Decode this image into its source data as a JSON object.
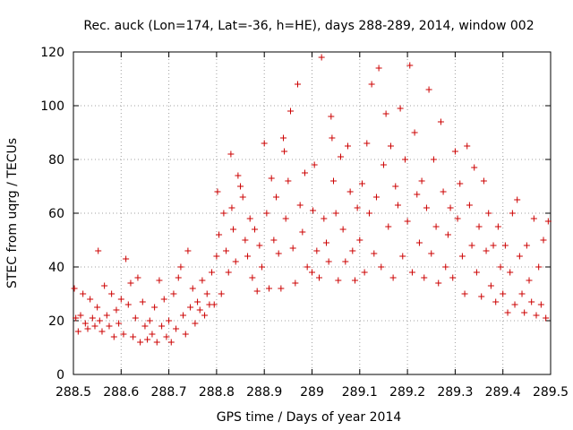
{
  "chart_data": {
    "type": "scatter",
    "title": "Rec. auck (Lon=174, Lat=-36, h=HE), days 288-289, 2014, window 002",
    "xlabel": "GPS time / Days of year 2014",
    "ylabel": "STEC from uqrg / TECUs",
    "xlim": [
      288.5,
      289.5
    ],
    "ylim": [
      0,
      120
    ],
    "xticks": [
      "288.5",
      "288.6",
      "288.7",
      "288.8",
      "288.9",
      "289",
      "289.1",
      "289.2",
      "289.3",
      "289.4",
      "289.5"
    ],
    "yticks": [
      "0",
      "20",
      "40",
      "60",
      "80",
      "100",
      "120"
    ],
    "grid": true,
    "marker": "+",
    "color": "#cc0000",
    "points": [
      [
        288.502,
        32
      ],
      [
        288.505,
        21
      ],
      [
        288.51,
        16
      ],
      [
        288.515,
        22
      ],
      [
        288.52,
        30
      ],
      [
        288.525,
        19
      ],
      [
        288.53,
        17
      ],
      [
        288.535,
        28
      ],
      [
        288.54,
        21
      ],
      [
        288.545,
        18
      ],
      [
        288.55,
        25
      ],
      [
        288.552,
        46
      ],
      [
        288.555,
        20
      ],
      [
        288.56,
        16
      ],
      [
        288.565,
        33
      ],
      [
        288.57,
        22
      ],
      [
        288.575,
        18
      ],
      [
        288.58,
        30
      ],
      [
        288.585,
        14
      ],
      [
        288.59,
        24
      ],
      [
        288.595,
        19
      ],
      [
        288.6,
        28
      ],
      [
        288.605,
        15
      ],
      [
        288.61,
        43
      ],
      [
        288.615,
        26
      ],
      [
        288.62,
        34
      ],
      [
        288.625,
        14
      ],
      [
        288.63,
        21
      ],
      [
        288.635,
        36
      ],
      [
        288.64,
        12
      ],
      [
        288.645,
        27
      ],
      [
        288.65,
        18
      ],
      [
        288.655,
        13
      ],
      [
        288.66,
        20
      ],
      [
        288.665,
        15
      ],
      [
        288.67,
        25
      ],
      [
        288.675,
        12
      ],
      [
        288.68,
        35
      ],
      [
        288.685,
        18
      ],
      [
        288.69,
        28
      ],
      [
        288.695,
        14
      ],
      [
        288.7,
        20
      ],
      [
        288.705,
        12
      ],
      [
        288.71,
        30
      ],
      [
        288.715,
        17
      ],
      [
        288.72,
        36
      ],
      [
        288.725,
        40
      ],
      [
        288.73,
        22
      ],
      [
        288.735,
        15
      ],
      [
        288.74,
        46
      ],
      [
        288.745,
        25
      ],
      [
        288.75,
        32
      ],
      [
        288.755,
        19
      ],
      [
        288.76,
        27
      ],
      [
        288.765,
        24
      ],
      [
        288.77,
        35
      ],
      [
        288.775,
        22
      ],
      [
        288.78,
        30
      ],
      [
        288.785,
        26
      ],
      [
        288.79,
        38
      ],
      [
        288.795,
        26
      ],
      [
        288.8,
        44
      ],
      [
        288.802,
        68
      ],
      [
        288.805,
        52
      ],
      [
        288.81,
        30
      ],
      [
        288.815,
        60
      ],
      [
        288.82,
        46
      ],
      [
        288.825,
        38
      ],
      [
        288.83,
        82
      ],
      [
        288.832,
        62
      ],
      [
        288.835,
        54
      ],
      [
        288.84,
        42
      ],
      [
        288.845,
        74
      ],
      [
        288.85,
        70
      ],
      [
        288.855,
        66
      ],
      [
        288.86,
        50
      ],
      [
        288.865,
        44
      ],
      [
        288.87,
        58
      ],
      [
        288.875,
        36
      ],
      [
        288.88,
        54
      ],
      [
        288.885,
        31
      ],
      [
        288.89,
        48
      ],
      [
        288.895,
        40
      ],
      [
        288.9,
        86
      ],
      [
        288.905,
        60
      ],
      [
        288.91,
        32
      ],
      [
        288.915,
        73
      ],
      [
        288.92,
        50
      ],
      [
        288.925,
        66
      ],
      [
        288.93,
        45
      ],
      [
        288.935,
        32
      ],
      [
        288.94,
        88
      ],
      [
        288.942,
        83
      ],
      [
        288.945,
        58
      ],
      [
        288.95,
        72
      ],
      [
        288.955,
        98
      ],
      [
        288.96,
        47
      ],
      [
        288.965,
        34
      ],
      [
        288.97,
        108
      ],
      [
        288.975,
        63
      ],
      [
        288.98,
        53
      ],
      [
        288.985,
        75
      ],
      [
        288.99,
        40
      ],
      [
        289.0,
        38
      ],
      [
        289.002,
        61
      ],
      [
        289.005,
        78
      ],
      [
        289.01,
        46
      ],
      [
        289.015,
        36
      ],
      [
        289.02,
        118
      ],
      [
        289.025,
        58
      ],
      [
        289.03,
        49
      ],
      [
        289.035,
        42
      ],
      [
        289.04,
        96
      ],
      [
        289.042,
        88
      ],
      [
        289.045,
        72
      ],
      [
        289.05,
        60
      ],
      [
        289.055,
        35
      ],
      [
        289.06,
        81
      ],
      [
        289.065,
        54
      ],
      [
        289.07,
        42
      ],
      [
        289.075,
        85
      ],
      [
        289.08,
        68
      ],
      [
        289.085,
        46
      ],
      [
        289.09,
        35
      ],
      [
        289.095,
        62
      ],
      [
        289.1,
        50
      ],
      [
        289.105,
        71
      ],
      [
        289.11,
        38
      ],
      [
        289.115,
        86
      ],
      [
        289.12,
        60
      ],
      [
        289.125,
        108
      ],
      [
        289.13,
        45
      ],
      [
        289.135,
        66
      ],
      [
        289.14,
        114
      ],
      [
        289.145,
        40
      ],
      [
        289.15,
        78
      ],
      [
        289.155,
        97
      ],
      [
        289.16,
        55
      ],
      [
        289.165,
        85
      ],
      [
        289.17,
        36
      ],
      [
        289.175,
        70
      ],
      [
        289.18,
        63
      ],
      [
        289.185,
        99
      ],
      [
        289.19,
        44
      ],
      [
        289.195,
        80
      ],
      [
        289.2,
        57
      ],
      [
        289.205,
        115
      ],
      [
        289.21,
        38
      ],
      [
        289.215,
        90
      ],
      [
        289.22,
        67
      ],
      [
        289.225,
        49
      ],
      [
        289.23,
        72
      ],
      [
        289.235,
        36
      ],
      [
        289.24,
        62
      ],
      [
        289.245,
        106
      ],
      [
        289.25,
        45
      ],
      [
        289.255,
        80
      ],
      [
        289.26,
        55
      ],
      [
        289.265,
        34
      ],
      [
        289.27,
        94
      ],
      [
        289.275,
        68
      ],
      [
        289.28,
        40
      ],
      [
        289.285,
        52
      ],
      [
        289.29,
        62
      ],
      [
        289.295,
        36
      ],
      [
        289.3,
        83
      ],
      [
        289.305,
        58
      ],
      [
        289.31,
        71
      ],
      [
        289.315,
        44
      ],
      [
        289.32,
        30
      ],
      [
        289.325,
        85
      ],
      [
        289.33,
        63
      ],
      [
        289.335,
        48
      ],
      [
        289.34,
        77
      ],
      [
        289.345,
        38
      ],
      [
        289.35,
        55
      ],
      [
        289.355,
        29
      ],
      [
        289.36,
        72
      ],
      [
        289.365,
        46
      ],
      [
        289.37,
        60
      ],
      [
        289.375,
        33
      ],
      [
        289.38,
        48
      ],
      [
        289.385,
        27
      ],
      [
        289.39,
        55
      ],
      [
        289.395,
        40
      ],
      [
        289.4,
        30
      ],
      [
        289.405,
        48
      ],
      [
        289.41,
        23
      ],
      [
        289.415,
        38
      ],
      [
        289.42,
        60
      ],
      [
        289.425,
        26
      ],
      [
        289.43,
        65
      ],
      [
        289.435,
        44
      ],
      [
        289.44,
        30
      ],
      [
        289.445,
        23
      ],
      [
        289.45,
        48
      ],
      [
        289.455,
        35
      ],
      [
        289.46,
        27
      ],
      [
        289.465,
        58
      ],
      [
        289.47,
        22
      ],
      [
        289.475,
        40
      ],
      [
        289.48,
        26
      ],
      [
        289.485,
        50
      ],
      [
        289.49,
        21
      ],
      [
        289.495,
        57
      ]
    ]
  }
}
